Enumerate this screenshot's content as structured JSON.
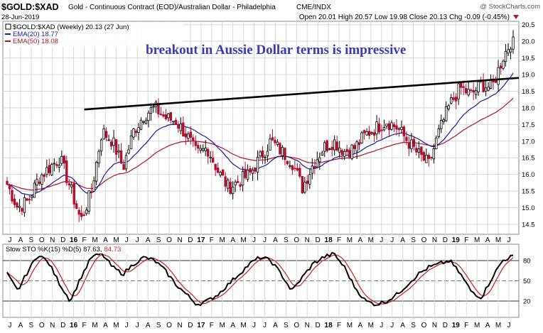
{
  "header": {
    "symbol": "$GOLD:$XAD",
    "description": "Gold - Continuous Contract (EOD)/Australian Dollar - Philadelphia",
    "exchange": "CME/INDX",
    "date": "28-Jun-2019",
    "watermark": "@ StockCharts.com",
    "ohlc": "Open 20.01  High 20.57  Low 19.98  Close 20.13  Chg -0.09 (-0.45%)",
    "chg_arrow": "down-triangle-icon"
  },
  "legend": {
    "main": "$GOLD:$XAD (Weekly) 20.13 (27 Jun)",
    "ema20": "EMA(20) 18.77",
    "ema50": "EMA(50) 18.08"
  },
  "annotation": "breakout in Aussie Dollar terms is impressive",
  "sto_legend": {
    "prefix": "Slow STO %K(15) %D(5) 87.63,",
    "d_value": "84.73"
  },
  "colors": {
    "up": "#000000",
    "down": "#b0102e",
    "ema20": "#1a1aa0",
    "ema50": "#b0102e",
    "annotation": "#3a3ab8",
    "grid": "#d8d8d8"
  },
  "chart_data": [
    {
      "type": "candlestick",
      "title": "$GOLD:$XAD (Weekly)",
      "period": [
        "2015-07",
        "2019-06"
      ],
      "price_axis_ticks": [
        14.5,
        15.0,
        15.5,
        16.0,
        16.5,
        17.0,
        17.5,
        18.0,
        18.5,
        19.0,
        19.5,
        20.0,
        20.5
      ],
      "ylim": [
        14.2,
        20.6
      ],
      "x_tick_labels": [
        "J",
        "A",
        "S",
        "O",
        "N",
        "D",
        "16",
        "F",
        "M",
        "A",
        "M",
        "J",
        "J",
        "A",
        "S",
        "O",
        "N",
        "D",
        "17",
        "F",
        "M",
        "A",
        "M",
        "J",
        "J",
        "A",
        "S",
        "O",
        "N",
        "D",
        "18",
        "F",
        "M",
        "A",
        "M",
        "J",
        "J",
        "A",
        "S",
        "O",
        "N",
        "D",
        "19",
        "F",
        "M",
        "A",
        "M",
        "J"
      ],
      "closes_approx": [
        15.7,
        15.0,
        15.2,
        15.9,
        16.2,
        16.5,
        15.6,
        14.6,
        15.5,
        17.3,
        17.0,
        16.2,
        17.3,
        17.8,
        18.0,
        17.7,
        17.6,
        17.2,
        16.6,
        16.8,
        16.1,
        15.6,
        15.8,
        16.0,
        16.5,
        17.0,
        16.7,
        16.4,
        15.6,
        16.3,
        16.8,
        17.0,
        16.7,
        16.8,
        17.2,
        17.4,
        17.6,
        17.4,
        17.0,
        16.6,
        16.3,
        17.3,
        18.1,
        18.6,
        18.4,
        18.7,
        18.6,
        19.5,
        20.13
      ],
      "last_close": 20.13,
      "ema20_last": 18.77,
      "ema50_last": 18.08,
      "trendline": {
        "start": [
          "2016-02",
          17.95
        ],
        "end": [
          "2019-06",
          18.9
        ]
      }
    },
    {
      "type": "line",
      "title": "Slow STO %K(15) %D(5)",
      "ylim": [
        0,
        100
      ],
      "reference_lines": [
        20,
        50,
        80
      ],
      "tick_labels": [
        20,
        50,
        80
      ],
      "k_last": 87.63,
      "d_last": 84.73,
      "k_approx": [
        60,
        35,
        65,
        90,
        75,
        45,
        20,
        55,
        85,
        90,
        70,
        60,
        75,
        85,
        80,
        65,
        45,
        30,
        15,
        20,
        30,
        45,
        60,
        75,
        85,
        80,
        60,
        35,
        55,
        75,
        85,
        90,
        70,
        40,
        20,
        15,
        20,
        30,
        45,
        60,
        70,
        75,
        80,
        60,
        35,
        25,
        55,
        80,
        87.63
      ]
    }
  ]
}
